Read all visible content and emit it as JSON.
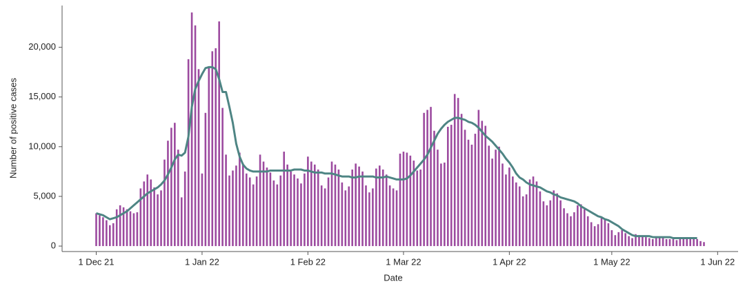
{
  "chart_data": {
    "type": "bar",
    "x_label": "Date",
    "y_label": "Number of positive cases",
    "x": [
      "2021-12-01",
      "2021-12-02",
      "2021-12-03",
      "2021-12-04",
      "2021-12-05",
      "2021-12-06",
      "2021-12-07",
      "2021-12-08",
      "2021-12-09",
      "2021-12-10",
      "2021-12-11",
      "2021-12-12",
      "2021-12-13",
      "2021-12-14",
      "2021-12-15",
      "2021-12-16",
      "2021-12-17",
      "2021-12-18",
      "2021-12-19",
      "2021-12-20",
      "2021-12-21",
      "2021-12-22",
      "2021-12-23",
      "2021-12-24",
      "2021-12-25",
      "2021-12-26",
      "2021-12-27",
      "2021-12-28",
      "2021-12-29",
      "2021-12-30",
      "2021-12-31",
      "2022-01-01",
      "2022-01-02",
      "2022-01-03",
      "2022-01-04",
      "2022-01-05",
      "2022-01-06",
      "2022-01-07",
      "2022-01-08",
      "2022-01-09",
      "2022-01-10",
      "2022-01-11",
      "2022-01-12",
      "2022-01-13",
      "2022-01-14",
      "2022-01-15",
      "2022-01-16",
      "2022-01-17",
      "2022-01-18",
      "2022-01-19",
      "2022-01-20",
      "2022-01-21",
      "2022-01-22",
      "2022-01-23",
      "2022-01-24",
      "2022-01-25",
      "2022-01-26",
      "2022-01-27",
      "2022-01-28",
      "2022-01-29",
      "2022-01-30",
      "2022-01-31",
      "2022-02-01",
      "2022-02-02",
      "2022-02-03",
      "2022-02-04",
      "2022-02-05",
      "2022-02-06",
      "2022-02-07",
      "2022-02-08",
      "2022-02-09",
      "2022-02-10",
      "2022-02-11",
      "2022-02-12",
      "2022-02-13",
      "2022-02-14",
      "2022-02-15",
      "2022-02-16",
      "2022-02-17",
      "2022-02-18",
      "2022-02-19",
      "2022-02-20",
      "2022-02-21",
      "2022-02-22",
      "2022-02-23",
      "2022-02-24",
      "2022-02-25",
      "2022-02-26",
      "2022-02-27",
      "2022-02-28",
      "2022-03-01",
      "2022-03-02",
      "2022-03-03",
      "2022-03-04",
      "2022-03-05",
      "2022-03-06",
      "2022-03-07",
      "2022-03-08",
      "2022-03-09",
      "2022-03-10",
      "2022-03-11",
      "2022-03-12",
      "2022-03-13",
      "2022-03-14",
      "2022-03-15",
      "2022-03-16",
      "2022-03-17",
      "2022-03-18",
      "2022-03-19",
      "2022-03-20",
      "2022-03-21",
      "2022-03-22",
      "2022-03-23",
      "2022-03-24",
      "2022-03-25",
      "2022-03-26",
      "2022-03-27",
      "2022-03-28",
      "2022-03-29",
      "2022-03-30",
      "2022-03-31",
      "2022-04-01",
      "2022-04-02",
      "2022-04-03",
      "2022-04-04",
      "2022-04-05",
      "2022-04-06",
      "2022-04-07",
      "2022-04-08",
      "2022-04-09",
      "2022-04-10",
      "2022-04-11",
      "2022-04-12",
      "2022-04-13",
      "2022-04-14",
      "2022-04-15",
      "2022-04-16",
      "2022-04-17",
      "2022-04-18",
      "2022-04-19",
      "2022-04-20",
      "2022-04-21",
      "2022-04-22",
      "2022-04-23",
      "2022-04-24",
      "2022-04-25",
      "2022-04-26",
      "2022-04-27",
      "2022-04-28",
      "2022-04-29",
      "2022-04-30",
      "2022-05-01",
      "2022-05-02",
      "2022-05-03",
      "2022-05-04",
      "2022-05-05",
      "2022-05-06",
      "2022-05-07",
      "2022-05-08",
      "2022-05-09",
      "2022-05-10",
      "2022-05-11",
      "2022-05-12",
      "2022-05-13",
      "2022-05-14",
      "2022-05-15",
      "2022-05-16",
      "2022-05-17",
      "2022-05-18",
      "2022-05-19",
      "2022-05-20",
      "2022-05-21",
      "2022-05-22",
      "2022-05-23",
      "2022-05-24",
      "2022-05-25",
      "2022-05-26",
      "2022-05-27",
      "2022-05-28"
    ],
    "series": [
      {
        "type": "bar",
        "color": "#9c4a9f",
        "values": [
          3300,
          3100,
          2900,
          2600,
          2100,
          2300,
          3700,
          4100,
          3900,
          3700,
          3500,
          3300,
          3400,
          5800,
          6500,
          7200,
          6700,
          5900,
          5200,
          5600,
          8700,
          10600,
          11900,
          12400,
          9700,
          4900,
          7500,
          18800,
          23500,
          22200,
          17800,
          7300,
          13400,
          18100,
          19600,
          19900,
          22600,
          13900,
          9200,
          7100,
          7600,
          8100,
          9400,
          8300,
          7300,
          6900,
          6200,
          7000,
          9200,
          8500,
          7900,
          7400,
          6600,
          6200,
          7100,
          9500,
          8200,
          7500,
          7200,
          6800,
          6300,
          7300,
          9000,
          8500,
          8200,
          7700,
          6100,
          5800,
          6900,
          8500,
          8200,
          7700,
          6400,
          5600,
          6000,
          7700,
          8300,
          8000,
          7500,
          6100,
          5400,
          5800,
          7800,
          8100,
          7700,
          7200,
          6100,
          5800,
          5600,
          9300,
          9500,
          9400,
          9100,
          8600,
          7600,
          7700,
          13400,
          13700,
          14000,
          11600,
          9700,
          8300,
          8400,
          12000,
          12200,
          15300,
          14900,
          13300,
          11700,
          10700,
          10200,
          11300,
          13700,
          12600,
          12100,
          10100,
          8800,
          9700,
          10000,
          8300,
          7200,
          7900,
          7000,
          6400,
          6000,
          5000,
          5200,
          6700,
          7000,
          6500,
          5500,
          4500,
          4100,
          4600,
          5600,
          5300,
          4600,
          3800,
          3300,
          3000,
          3400,
          4100,
          4200,
          3700,
          3000,
          2400,
          2000,
          2200,
          2900,
          2700,
          2300,
          1600,
          1100,
          1400,
          1600,
          1300,
          1000,
          800,
          1200,
          1100,
          1000,
          900,
          800,
          700,
          800,
          900,
          800,
          700,
          700,
          700,
          600,
          700,
          700,
          700,
          700,
          700,
          700,
          500,
          400
        ]
      },
      {
        "type": "line",
        "color": "#4e8584",
        "values": [
          3300,
          3200,
          3100,
          2900,
          2700,
          2800,
          2900,
          3100,
          3300,
          3500,
          3800,
          4100,
          4400,
          4700,
          5000,
          5300,
          5500,
          5700,
          5900,
          6200,
          6600,
          7200,
          7900,
          8700,
          9200,
          9100,
          9400,
          11000,
          14000,
          15800,
          16600,
          17300,
          17900,
          18000,
          18000,
          17800,
          16800,
          15500,
          15500,
          14000,
          12400,
          10300,
          9000,
          8200,
          7800,
          7600,
          7500,
          7500,
          7500,
          7500,
          7500,
          7600,
          7600,
          7600,
          7600,
          7600,
          7600,
          7600,
          7700,
          7700,
          7700,
          7600,
          7600,
          7500,
          7400,
          7400,
          7400,
          7300,
          7300,
          7300,
          7200,
          7100,
          7000,
          7000,
          7000,
          6900,
          6900,
          7000,
          7000,
          7000,
          7000,
          7000,
          6900,
          6900,
          6900,
          7000,
          6900,
          6800,
          6700,
          6700,
          6700,
          6800,
          7100,
          7500,
          7900,
          8300,
          8700,
          9200,
          9900,
          10600,
          11300,
          11800,
          12200,
          12500,
          12700,
          12900,
          12900,
          12800,
          12700,
          12500,
          12400,
          12200,
          11900,
          11500,
          11100,
          10800,
          10500,
          10100,
          9700,
          9300,
          8800,
          8400,
          7900,
          7300,
          6900,
          6700,
          6400,
          6200,
          6100,
          6000,
          5900,
          5700,
          5500,
          5400,
          5200,
          5100,
          4900,
          4800,
          4700,
          4600,
          4500,
          4300,
          4000,
          3800,
          3600,
          3400,
          3200,
          3000,
          2900,
          2700,
          2600,
          2400,
          2200,
          2000,
          1700,
          1500,
          1300,
          1100,
          1000,
          1000,
          1000,
          1000,
          1000,
          900,
          900,
          900,
          900,
          900,
          900,
          800,
          800,
          800,
          800,
          800,
          800,
          800,
          800,
          null,
          null
        ]
      }
    ],
    "xlim": [
      "2021-11-21",
      "2022-06-07"
    ],
    "xticks": [
      {
        "value": "2021-12-01",
        "label": "1 Dec 21"
      },
      {
        "value": "2022-01-01",
        "label": "1 Jan 22"
      },
      {
        "value": "2022-02-01",
        "label": "1 Feb 22"
      },
      {
        "value": "2022-03-01",
        "label": "1 Mar 22"
      },
      {
        "value": "2022-04-01",
        "label": "1 Apr 22"
      },
      {
        "value": "2022-05-01",
        "label": "1 May 22"
      },
      {
        "value": "2022-06-01",
        "label": "1 Jun 22"
      }
    ],
    "ylim": [
      -550,
      24200
    ],
    "yticks": [
      0,
      {
        "value": 5000,
        "label": "5,000"
      },
      {
        "value": 10000,
        "label": "10,000"
      },
      {
        "value": 15000,
        "label": "15,000"
      },
      {
        "value": 20000,
        "label": "20,000"
      }
    ],
    "grid": false
  }
}
